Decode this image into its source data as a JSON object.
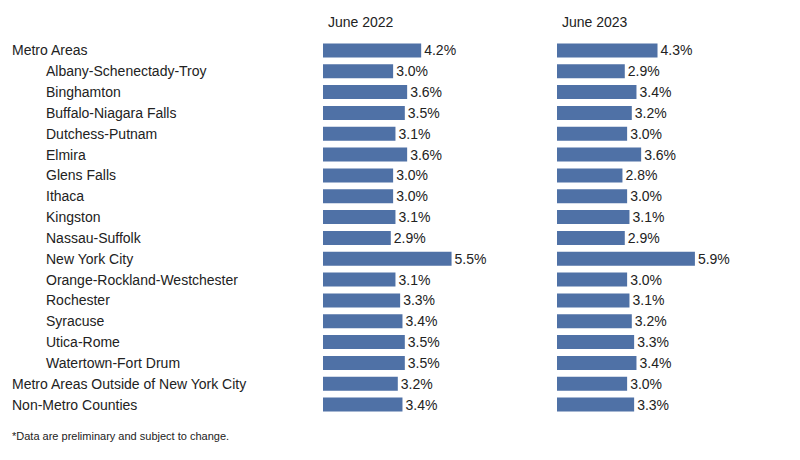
{
  "chart_data": {
    "type": "bar",
    "orientation": "horizontal",
    "categories": [
      "Metro Areas",
      "Albany-Schenectady-Troy",
      "Binghamton",
      "Buffalo-Niagara Falls",
      "Dutchess-Putnam",
      "Elmira",
      "Glens Falls",
      "Ithaca",
      "Kingston",
      "Nassau-Suffolk",
      "New York City",
      "Orange-Rockland-Westchester",
      "Rochester",
      "Syracuse",
      "Utica-Rome",
      "Watertown-Fort Drum",
      "Metro Areas Outside of New York City",
      "Non-Metro Counties"
    ],
    "series": [
      {
        "name": "June 2022",
        "color": "#4f71a6",
        "values": [
          4.2,
          3.0,
          3.6,
          3.5,
          3.1,
          3.6,
          3.0,
          3.0,
          3.1,
          2.9,
          5.5,
          3.1,
          3.3,
          3.4,
          3.5,
          3.5,
          3.2,
          3.4
        ],
        "value_labels": [
          "4.2%",
          "3.0%",
          "3.6%",
          "3.5%",
          "3.1%",
          "3.6%",
          "3.0%",
          "3.0%",
          "3.1%",
          "2.9%",
          "5.5%",
          "3.1%",
          "3.3%",
          "3.4%",
          "3.5%",
          "3.5%",
          "3.2%",
          "3.4%"
        ]
      },
      {
        "name": "June 2023",
        "color": "#4f71a6",
        "values": [
          4.3,
          2.9,
          3.4,
          3.2,
          3.0,
          3.6,
          2.8,
          3.0,
          3.1,
          2.9,
          5.9,
          3.0,
          3.1,
          3.2,
          3.3,
          3.4,
          3.0,
          3.3
        ],
        "value_labels": [
          "4.3%",
          "2.9%",
          "3.4%",
          "3.2%",
          "3.0%",
          "3.6%",
          "2.8%",
          "3.0%",
          "3.1%",
          "2.9%",
          "5.9%",
          "3.0%",
          "3.1%",
          "3.2%",
          "3.3%",
          "3.4%",
          "3.0%",
          "3.3%"
        ]
      }
    ],
    "xlim": [
      0,
      8
    ],
    "data_labels": true,
    "tick_labels": false,
    "grid": false,
    "annotations": [
      "*Data are preliminary and subject to change."
    ]
  }
}
